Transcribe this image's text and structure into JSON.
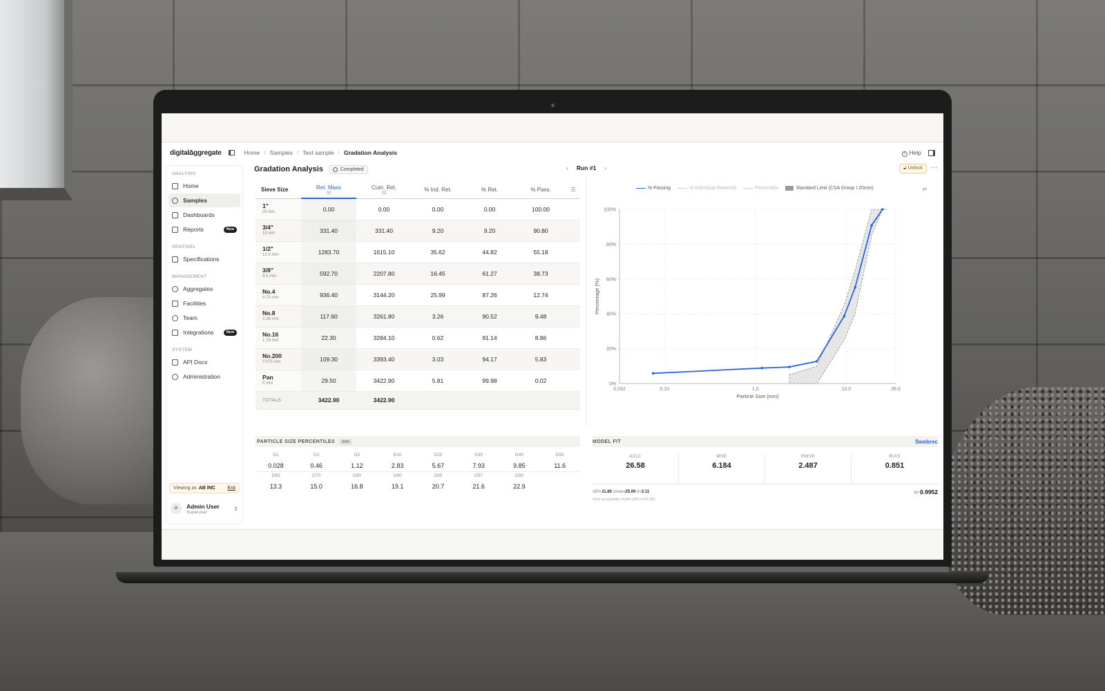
{
  "app": {
    "logo": "digital∆ggregate",
    "breadcrumb": [
      "Home",
      "Samples",
      "Test sample",
      "Gradation Analysis"
    ],
    "help_label": "Help"
  },
  "sidebar": {
    "sections": [
      {
        "title": "ANALYSIS",
        "items": [
          {
            "label": "Home",
            "icon": "stack-icon"
          },
          {
            "label": "Samples",
            "icon": "pile-icon",
            "active": true
          },
          {
            "label": "Dashboards",
            "icon": "grid-icon"
          },
          {
            "label": "Reports",
            "icon": "clipboard-icon",
            "badge": "New"
          }
        ]
      },
      {
        "title": "SENTINEL",
        "items": [
          {
            "label": "Specifications",
            "icon": "ruler-icon"
          }
        ]
      },
      {
        "title": "MANAGEMENT",
        "items": [
          {
            "label": "Aggregates",
            "icon": "aggregate-icon"
          },
          {
            "label": "Facilities",
            "icon": "building-icon"
          },
          {
            "label": "Team",
            "icon": "users-icon"
          },
          {
            "label": "Integrations",
            "icon": "plug-icon",
            "badge": "New"
          }
        ]
      },
      {
        "title": "SYSTEM",
        "items": [
          {
            "label": "API Docs",
            "icon": "doc-icon"
          },
          {
            "label": "Administration",
            "icon": "shield-icon"
          }
        ]
      }
    ],
    "viewing_prefix": "Viewing as",
    "viewing_org": "AB INC",
    "exit_label": "Exit",
    "user_initial": "A",
    "user_name": "Admin User",
    "user_role": "Superuser"
  },
  "page": {
    "title": "Gradation Analysis",
    "status": "Completed",
    "run_label": "Run #1",
    "unlock_label": "Unlock",
    "more_label": "···"
  },
  "table": {
    "headers": [
      {
        "label": "Sieve Size",
        "unit": ""
      },
      {
        "label": "Ret. Mass",
        "unit": "(g)"
      },
      {
        "label": "Cum. Ret.",
        "unit": "(g)"
      },
      {
        "label": "% Ind. Ret.",
        "unit": ""
      },
      {
        "label": "% Ret.",
        "unit": ""
      },
      {
        "label": "% Pass.",
        "unit": ""
      }
    ],
    "rows": [
      {
        "sieve": "1\"",
        "mm": "25 mm",
        "ret": "0.00",
        "cum": "0.00",
        "ind": "0.00",
        "pret": "0.00",
        "pass": "100.00"
      },
      {
        "sieve": "3/4\"",
        "mm": "19 mm",
        "ret": "331.40",
        "cum": "331.40",
        "ind": "9.20",
        "pret": "9.20",
        "pass": "90.80"
      },
      {
        "sieve": "1/2\"",
        "mm": "12.5 mm",
        "ret": "1283.70",
        "cum": "1615.10",
        "ind": "35.62",
        "pret": "44.82",
        "pass": "55.18"
      },
      {
        "sieve": "3/8\"",
        "mm": "9.5 mm",
        "ret": "592.70",
        "cum": "2207.80",
        "ind": "16.45",
        "pret": "61.27",
        "pass": "38.73"
      },
      {
        "sieve": "No.4",
        "mm": "4.75 mm",
        "ret": "936.40",
        "cum": "3144.20",
        "ind": "25.99",
        "pret": "87.26",
        "pass": "12.74"
      },
      {
        "sieve": "No.8",
        "mm": "2.36 mm",
        "ret": "117.60",
        "cum": "3261.80",
        "ind": "3.26",
        "pret": "90.52",
        "pass": "9.48"
      },
      {
        "sieve": "No.16",
        "mm": "1.18 mm",
        "ret": "22.30",
        "cum": "3284.10",
        "ind": "0.62",
        "pret": "91.14",
        "pass": "8.86"
      },
      {
        "sieve": "No.200",
        "mm": "0.075 mm",
        "ret": "109.30",
        "cum": "3393.40",
        "ind": "3.03",
        "pret": "94.17",
        "pass": "5.83"
      },
      {
        "sieve": "Pan",
        "mm": "0 mm",
        "ret": "29.50",
        "cum": "3422.90",
        "ind": "5.81",
        "pret": "99.98",
        "pass": "0.02"
      }
    ],
    "totals_label": "TOTALS",
    "totals_ret": "3422.90",
    "totals_cum": "3422.90"
  },
  "chart_data": {
    "type": "line",
    "xscale": "log",
    "xlabel": "Particle Size (mm)",
    "ylabel": "Percentage (%)",
    "xlim": [
      0.032,
      35.0
    ],
    "ylim": [
      0,
      100
    ],
    "x_ticks": [
      "0.032",
      "0.10",
      "1.0",
      "10.0",
      "35.0"
    ],
    "y_ticks": [
      "0%",
      "20%",
      "40%",
      "60%",
      "80%",
      "100%"
    ],
    "legend": [
      "% Passing",
      "% Individual Retained",
      "Percentiles",
      "Standard Limit (CSA Group I 20mm)"
    ],
    "legend_position": "top",
    "series": [
      {
        "name": "% Passing",
        "x": [
          0.075,
          1.18,
          2.36,
          4.75,
          9.5,
          12.5,
          19,
          25
        ],
        "y": [
          5.83,
          8.86,
          9.48,
          12.74,
          38.73,
          55.18,
          90.8,
          100.0
        ]
      }
    ],
    "band": {
      "name": "Standard Limit (CSA Group I 20mm)",
      "x": [
        2.36,
        4.75,
        9.5,
        12.5,
        19,
        25,
        28
      ],
      "lower": [
        0,
        0,
        25,
        40,
        85,
        100,
        100
      ],
      "upper": [
        5,
        10,
        45,
        65,
        100,
        100,
        100
      ]
    },
    "colors": {
      "passing": "#2a62d8",
      "band": "#e6e6e4"
    }
  },
  "percentiles": {
    "title": "PARTICLE SIZE PERCENTILES",
    "unit": "mm",
    "row1_keys": [
      "D1",
      "D3",
      "D5",
      "D10",
      "D20",
      "D30",
      "D40",
      "D50"
    ],
    "row1_vals": [
      "0.028",
      "0.46",
      "1.12",
      "2.83",
      "5.67",
      "7.93",
      "9.85",
      "11.6"
    ],
    "row2_keys": [
      "D60",
      "D70",
      "D80",
      "D90",
      "D95",
      "D97",
      "D99",
      ""
    ],
    "row2_vals": [
      "13.3",
      "15.0",
      "16.8",
      "19.1",
      "20.7",
      "21.6",
      "22.9",
      ""
    ]
  },
  "model_fit": {
    "title": "MODEL FIT",
    "model": "Swebrec",
    "metrics": [
      {
        "label": "AICC",
        "value": "26.58"
      },
      {
        "label": "MSE",
        "value": "6.184"
      },
      {
        "label": "RMSE",
        "value": "2.487"
      },
      {
        "label": "BIAS",
        "value": "0.851"
      }
    ],
    "x50_label": "x50=",
    "x50": "11.60",
    "xmax_label": "xmax=",
    "xmax": "25.00",
    "b_label": "b=",
    "b": "2.11",
    "r2_label": "R²",
    "r2": "0.9952",
    "note": "Only acceptable model (AICc=26.58)"
  }
}
